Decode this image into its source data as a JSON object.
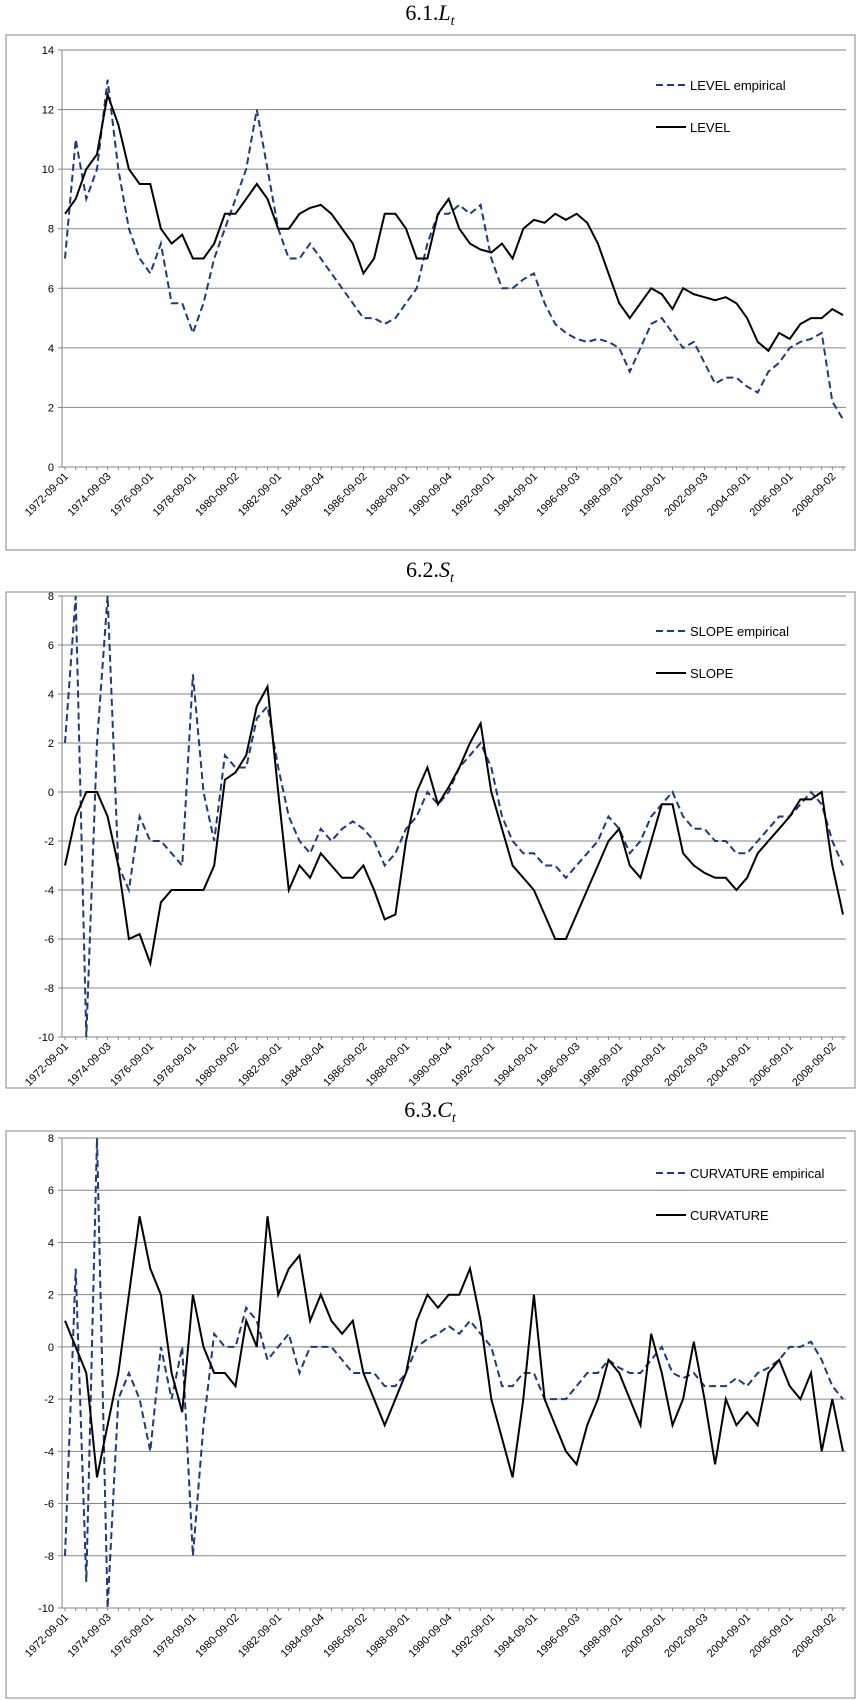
{
  "chart_data": [
    {
      "type": "line",
      "title_number": "6.1.",
      "title_symbol": "L",
      "title_subscript": "t",
      "categories": [
        "1972-09-01",
        null,
        null,
        null,
        "1974-09-03",
        null,
        null,
        null,
        "1976-09-01",
        null,
        null,
        null,
        "1978-09-01",
        null,
        null,
        null,
        "1980-09-02",
        null,
        null,
        null,
        "1982-09-01",
        null,
        null,
        null,
        "1984-09-04",
        null,
        null,
        null,
        "1986-09-02",
        null,
        null,
        null,
        "1988-09-01",
        null,
        null,
        null,
        "1990-09-04",
        null,
        null,
        null,
        "1992-09-01",
        null,
        null,
        null,
        "1994-09-01",
        null,
        null,
        null,
        "1996-09-03",
        null,
        null,
        null,
        "1998-09-01",
        null,
        null,
        null,
        "2000-09-01",
        null,
        null,
        null,
        "2002-09-03",
        null,
        null,
        null,
        "2004-09-01",
        null,
        null,
        null,
        "2006-09-01",
        null,
        null,
        null,
        "2008-09-02",
        null
      ],
      "ylim": [
        0,
        14
      ],
      "yticks": [
        0,
        2,
        4,
        6,
        8,
        10,
        12,
        14
      ],
      "grid": true,
      "legend": "upper-right",
      "series": [
        {
          "name": "LEVEL empirical",
          "color": "#1f3a7a",
          "dash": "dashed",
          "values": [
            7,
            11,
            9,
            10,
            13,
            10,
            8,
            7,
            6.5,
            7.5,
            5.5,
            5.5,
            4.5,
            5.5,
            7,
            8,
            9,
            10,
            12,
            10,
            8,
            7,
            7,
            7.5,
            7,
            6.5,
            6,
            5.5,
            5,
            5,
            4.8,
            5,
            5.5,
            6,
            7.5,
            8.5,
            8.5,
            8.8,
            8.5,
            8.8,
            7,
            6,
            6,
            6.3,
            6.5,
            5.5,
            4.8,
            4.5,
            4.3,
            4.2,
            4.3,
            4.2,
            4,
            3.2,
            4,
            4.8,
            5,
            4.5,
            4,
            4.2,
            3.5,
            2.8,
            3,
            3,
            2.7,
            2.5,
            3.2,
            3.5,
            4,
            4.2,
            4.3,
            4.5,
            2.2,
            1.6
          ]
        },
        {
          "name": "LEVEL",
          "color": "#000000",
          "dash": "solid",
          "values": [
            8.5,
            9,
            10,
            10.5,
            12.5,
            11.5,
            10,
            9.5,
            9.5,
            8,
            7.5,
            7.8,
            7,
            7,
            7.5,
            8.5,
            8.5,
            9,
            9.5,
            9,
            8,
            8,
            8.5,
            8.7,
            8.8,
            8.5,
            8,
            7.5,
            6.5,
            7,
            8.5,
            8.5,
            8,
            7,
            7,
            8.5,
            9,
            8,
            7.5,
            7.3,
            7.2,
            7.5,
            7,
            8,
            8.3,
            8.2,
            8.5,
            8.3,
            8.5,
            8.2,
            7.5,
            6.5,
            5.5,
            5,
            5.5,
            6,
            5.8,
            5.3,
            6,
            5.8,
            5.7,
            5.6,
            5.7,
            5.5,
            5,
            4.2,
            3.9,
            4.5,
            4.3,
            4.8,
            5,
            5,
            5.3,
            5.1
          ]
        }
      ]
    },
    {
      "type": "line",
      "title_number": "6.2.",
      "title_symbol": "S",
      "title_subscript": "t",
      "categories": [
        "1972-09-01",
        null,
        null,
        null,
        "1974-09-03",
        null,
        null,
        null,
        "1976-09-01",
        null,
        null,
        null,
        "1978-09-01",
        null,
        null,
        null,
        "1980-09-02",
        null,
        null,
        null,
        "1982-09-01",
        null,
        null,
        null,
        "1984-09-04",
        null,
        null,
        null,
        "1986-09-02",
        null,
        null,
        null,
        "1988-09-01",
        null,
        null,
        null,
        "1990-09-04",
        null,
        null,
        null,
        "1992-09-01",
        null,
        null,
        null,
        "1994-09-01",
        null,
        null,
        null,
        "1996-09-03",
        null,
        null,
        null,
        "1998-09-01",
        null,
        null,
        null,
        "2000-09-01",
        null,
        null,
        null,
        "2002-09-03",
        null,
        null,
        null,
        "2004-09-01",
        null,
        null,
        null,
        "2006-09-01",
        null,
        null,
        null,
        "2008-09-02",
        null
      ],
      "ylim": [
        -10,
        8
      ],
      "yticks": [
        -10,
        -8,
        -6,
        -4,
        -2,
        0,
        2,
        4,
        6,
        8
      ],
      "grid": true,
      "legend": "upper-right",
      "series": [
        {
          "name": "SLOPE empirical",
          "color": "#1f3a7a",
          "dash": "dashed",
          "values": [
            2,
            8,
            -10,
            2,
            8,
            -3,
            -4,
            -1,
            -2,
            -2,
            -2.5,
            -3,
            4.8,
            0,
            -2,
            1.5,
            1,
            1,
            3,
            3.5,
            1,
            -1,
            -2,
            -2.5,
            -1.5,
            -2,
            -1.5,
            -1.2,
            -1.5,
            -2,
            -3,
            -2.5,
            -1.5,
            -1,
            0,
            -0.5,
            0,
            1,
            1.5,
            2,
            1,
            -1,
            -2,
            -2.5,
            -2.5,
            -3,
            -3,
            -3.5,
            -3,
            -2.5,
            -2,
            -1,
            -1.5,
            -2.5,
            -2,
            -1,
            -0.5,
            0,
            -1,
            -1.5,
            -1.5,
            -2,
            -2,
            -2.5,
            -2.5,
            -2,
            -1.5,
            -1,
            -1,
            -0.5,
            0,
            -0.5,
            -2,
            -3
          ]
        },
        {
          "name": "SLOPE",
          "color": "#000000",
          "dash": "solid",
          "values": [
            -3,
            -1,
            0,
            0,
            -1,
            -3,
            -6,
            -5.8,
            -7,
            -4.5,
            -4,
            -4,
            -4,
            -4,
            -3,
            0.5,
            0.8,
            1.5,
            3.5,
            4.3,
            0,
            -4,
            -3,
            -3.5,
            -2.5,
            -3,
            -3.5,
            -3.5,
            -3,
            -4,
            -5.2,
            -5,
            -2,
            0,
            1,
            -0.5,
            0.2,
            1,
            2,
            2.8,
            0,
            -1.5,
            -3,
            -3.5,
            -4,
            -5,
            -6,
            -6,
            -5,
            -4,
            -3,
            -2,
            -1.5,
            -3,
            -3.5,
            -2,
            -0.5,
            -0.5,
            -2.5,
            -3,
            -3.3,
            -3.5,
            -3.5,
            -4,
            -3.5,
            -2.5,
            -2,
            -1.5,
            -1,
            -0.3,
            -0.3,
            0,
            -3,
            -5
          ]
        }
      ]
    },
    {
      "type": "line",
      "title_number": "6.3.",
      "title_symbol": "C",
      "title_subscript": "t",
      "categories": [
        "1972-09-01",
        null,
        null,
        null,
        "1974-09-03",
        null,
        null,
        null,
        "1976-09-01",
        null,
        null,
        null,
        "1978-09-01",
        null,
        null,
        null,
        "1980-09-02",
        null,
        null,
        null,
        "1982-09-01",
        null,
        null,
        null,
        "1984-09-04",
        null,
        null,
        null,
        "1986-09-02",
        null,
        null,
        null,
        "1988-09-01",
        null,
        null,
        null,
        "1990-09-04",
        null,
        null,
        null,
        "1992-09-01",
        null,
        null,
        null,
        "1994-09-01",
        null,
        null,
        null,
        "1996-09-03",
        null,
        null,
        null,
        "1998-09-01",
        null,
        null,
        null,
        "2000-09-01",
        null,
        null,
        null,
        "2002-09-03",
        null,
        null,
        null,
        "2004-09-01",
        null,
        null,
        null,
        "2006-09-01",
        null,
        null,
        null,
        "2008-09-02",
        null
      ],
      "ylim": [
        -10,
        8
      ],
      "yticks": [
        -10,
        -8,
        -6,
        -4,
        -2,
        0,
        2,
        4,
        6,
        8
      ],
      "grid": true,
      "legend": "upper-right",
      "series": [
        {
          "name": "CURVATURE empirical",
          "color": "#1f3a7a",
          "dash": "dashed",
          "values": [
            -8,
            3,
            -9,
            8,
            -10,
            -2,
            -1,
            -2,
            -4,
            0,
            -2,
            0,
            -8,
            -3,
            0.5,
            0,
            0,
            1.5,
            1,
            -0.5,
            0,
            0.5,
            -1,
            0,
            0,
            0,
            -0.5,
            -1,
            -1,
            -1,
            -1.5,
            -1.5,
            -1,
            0,
            0.3,
            0.5,
            0.8,
            0.5,
            1,
            0.5,
            0,
            -1.5,
            -1.5,
            -1,
            -1,
            -2,
            -2,
            -2,
            -1.5,
            -1,
            -1,
            -0.5,
            -0.8,
            -1,
            -1,
            -0.5,
            0,
            -1,
            -1.2,
            -1,
            -1.5,
            -1.5,
            -1.5,
            -1.2,
            -1.5,
            -1,
            -0.8,
            -0.5,
            0,
            0,
            0.2,
            -0.5,
            -1.5,
            -2
          ]
        },
        {
          "name": "CURVATURE",
          "color": "#000000",
          "dash": "solid",
          "values": [
            1,
            0,
            -1,
            -5,
            -3,
            -1,
            2,
            5,
            3,
            2,
            -1,
            -2.5,
            2,
            0,
            -1,
            -1,
            -1.5,
            1,
            0,
            5,
            2,
            3,
            3.5,
            1,
            2,
            1,
            0.5,
            1,
            -1,
            -2,
            -3,
            -2,
            -1,
            1,
            2,
            1.5,
            2,
            2,
            3,
            1,
            -2,
            -3.5,
            -5,
            -2,
            2,
            -2,
            -3,
            -4,
            -4.5,
            -3,
            -2,
            -0.5,
            -1,
            -2,
            -3,
            0.5,
            -1,
            -3,
            -2,
            0.2,
            -2,
            -4.5,
            -2,
            -3,
            -2.5,
            -3,
            -1,
            -0.5,
            -1.5,
            -2,
            -1,
            -4,
            -2,
            -4
          ]
        }
      ]
    }
  ]
}
